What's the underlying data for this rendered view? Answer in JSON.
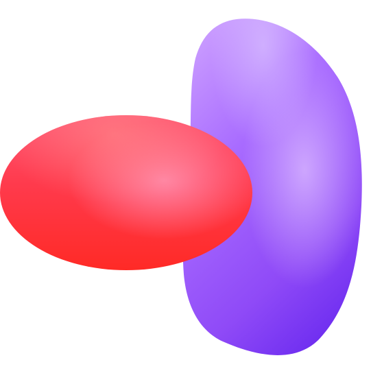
{
  "scene": {
    "background": "#ffffff",
    "shapes": [
      {
        "name": "purple-bean",
        "colors": {
          "highlight": "#c99bff",
          "mid": "#a86bff",
          "base": "#8f4af7",
          "shadow": "#6f2ef0"
        }
      },
      {
        "name": "red-ellipsoid",
        "colors": {
          "highlight": "#ff7f9f",
          "mid": "#ff5573",
          "base": "#ff3a4c",
          "shadow": "#ff2a26"
        }
      }
    ]
  }
}
